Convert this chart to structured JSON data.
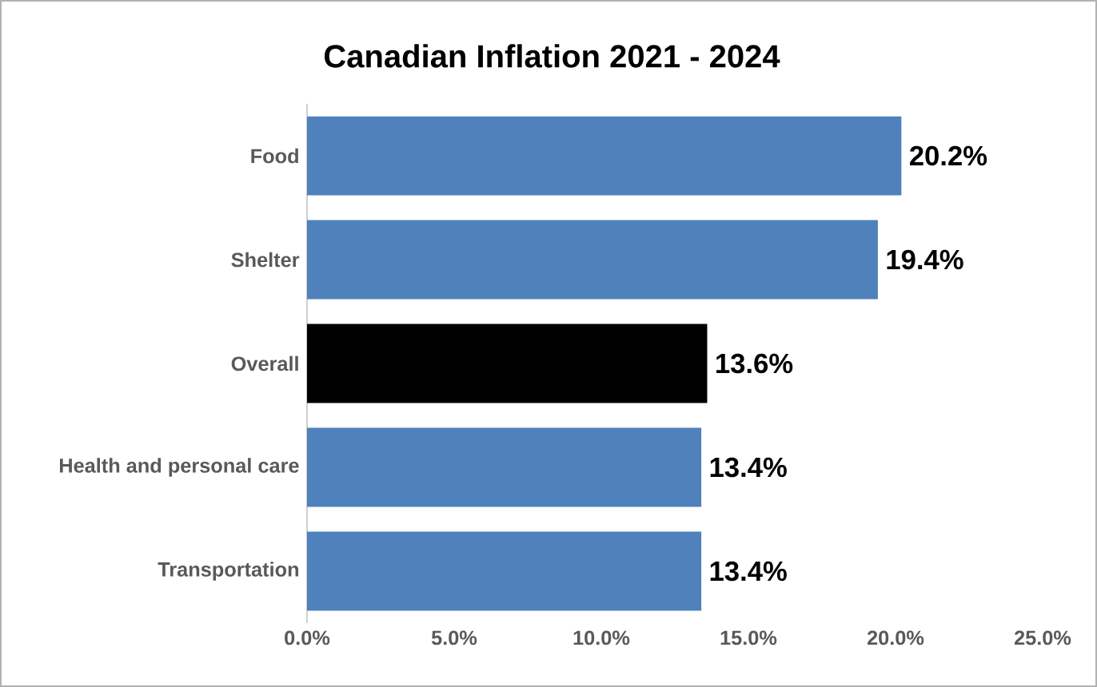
{
  "chart_data": {
    "type": "bar",
    "orientation": "horizontal",
    "title": "Canadian Inflation 2021 - 2024",
    "categories": [
      "Food",
      "Shelter",
      "Overall",
      "Health and personal care",
      "Transportation"
    ],
    "values": [
      20.2,
      19.4,
      13.6,
      13.4,
      13.4
    ],
    "colors": [
      "#4f81bd",
      "#4f81bd",
      "#000000",
      "#4f81bd",
      "#4f81bd"
    ],
    "value_labels": [
      "20.2%",
      "19.4%",
      "13.6%",
      "13.4%",
      "13.4%"
    ],
    "xlim": [
      0,
      25
    ],
    "xticks": [
      {
        "value": 0,
        "label": "0.0%"
      },
      {
        "value": 5,
        "label": "5.0%"
      },
      {
        "value": 10,
        "label": "10.0%"
      },
      {
        "value": 15,
        "label": "15.0%"
      },
      {
        "value": 20,
        "label": "20.0%"
      },
      {
        "value": 25,
        "label": "25.0%"
      }
    ],
    "grid": false
  }
}
